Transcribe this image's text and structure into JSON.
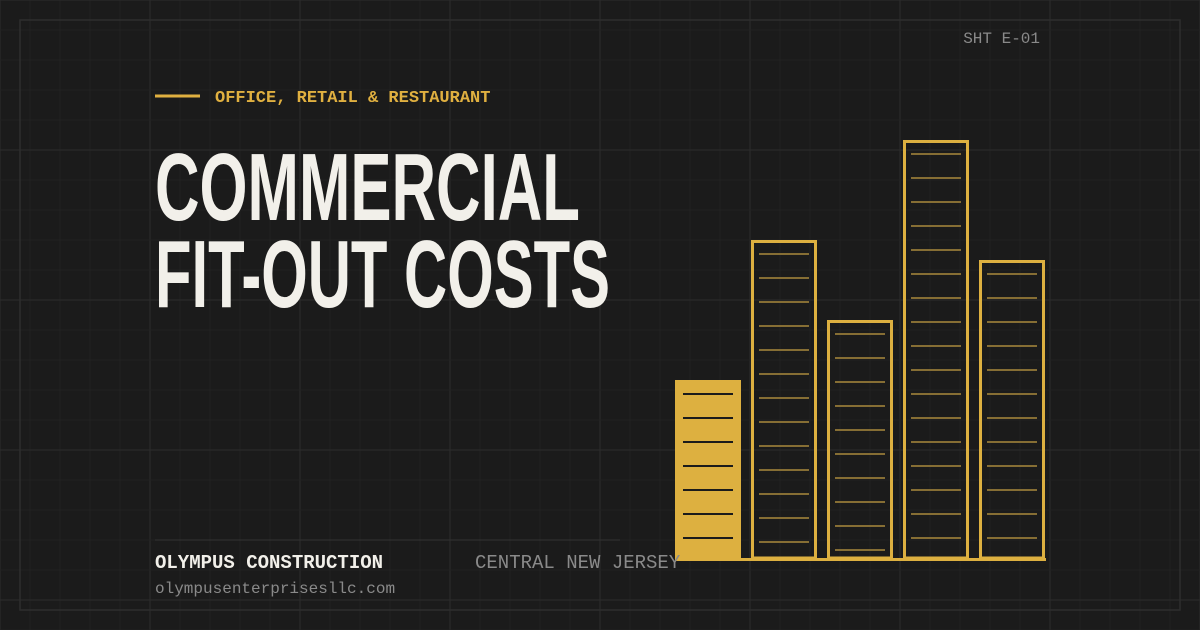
{
  "sheet": "SHT E-01",
  "eyebrow": "OFFICE, RETAIL & RESTAURANT",
  "title": {
    "line1": "COMMERCIAL",
    "line2": "FIT-OUT COSTS"
  },
  "footer": {
    "company": "OLYMPUS CONSTRUCTION",
    "website": "olympusenterprisesllc.com",
    "region": "CENTRAL NEW JERSEY"
  }
}
